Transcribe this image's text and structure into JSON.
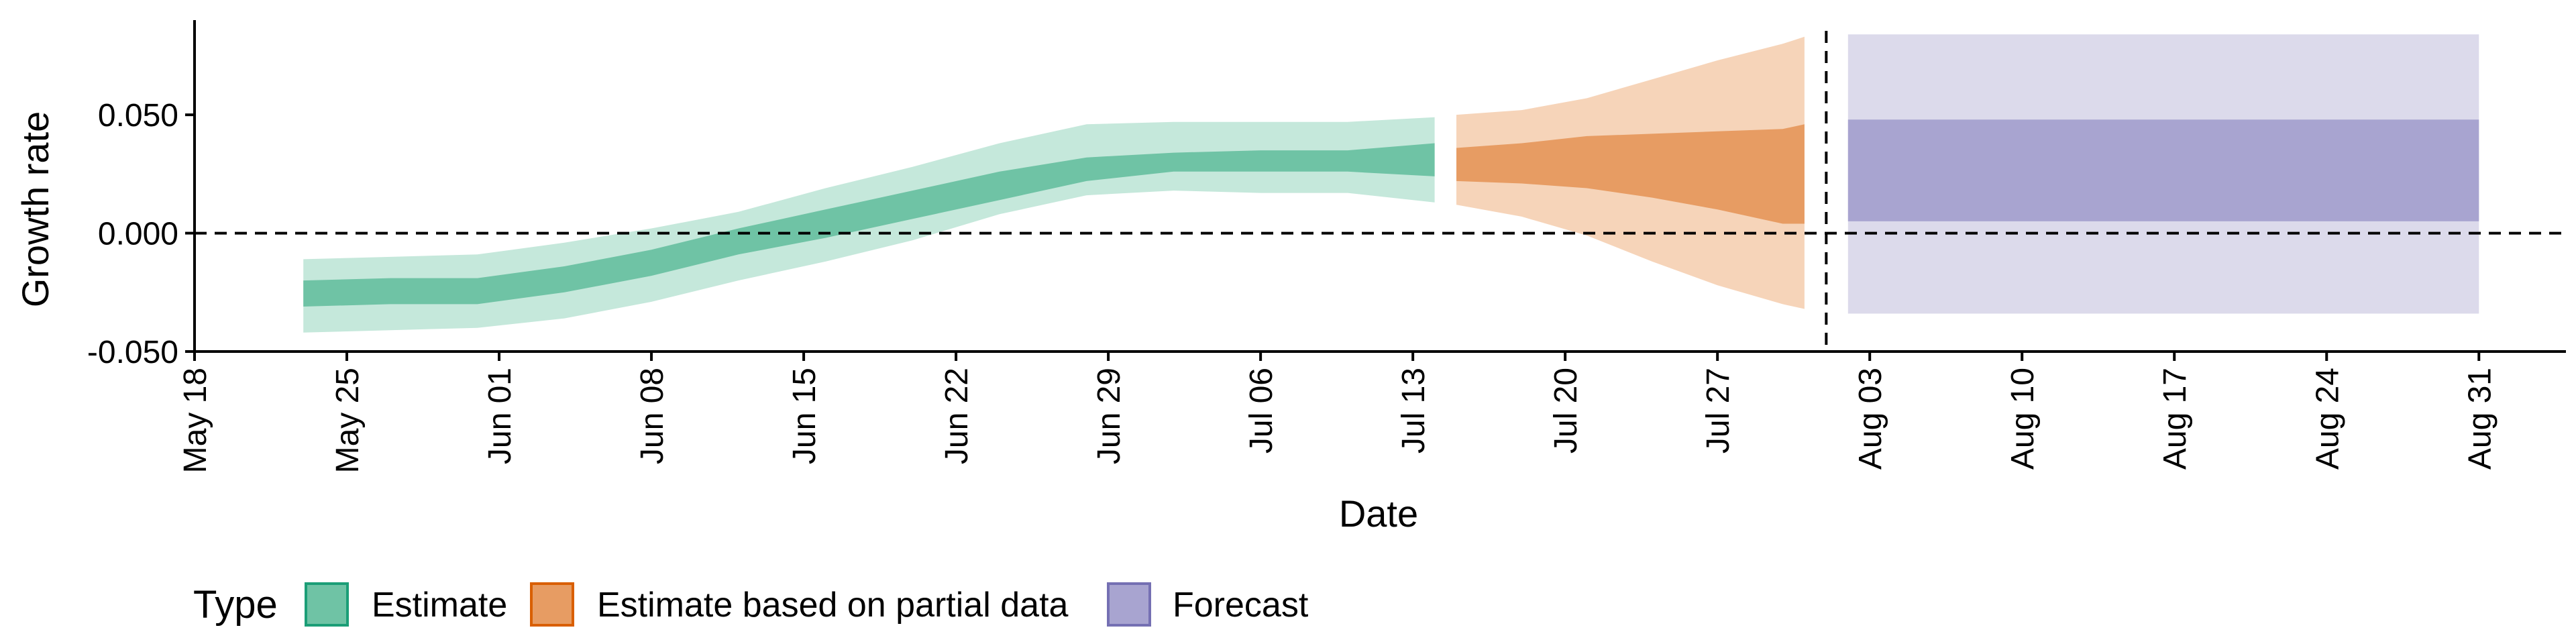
{
  "chart_data": {
    "type": "area",
    "xlabel": "Date",
    "ylabel": "Growth rate",
    "year": 2020,
    "xlim": [
      "2020-05-18",
      "2020-09-04"
    ],
    "ylim": [
      -0.05,
      0.09
    ],
    "x_ticks": [
      "2020-05-18",
      "2020-05-25",
      "2020-06-01",
      "2020-06-08",
      "2020-06-15",
      "2020-06-22",
      "2020-06-29",
      "2020-07-06",
      "2020-07-13",
      "2020-07-20",
      "2020-07-27",
      "2020-08-03",
      "2020-08-10",
      "2020-08-17",
      "2020-08-24",
      "2020-08-31"
    ],
    "x_tick_labels": [
      "May 18",
      "May 25",
      "Jun 01",
      "Jun 08",
      "Jun 15",
      "Jun 22",
      "Jun 29",
      "Jul 06",
      "Jul 13",
      "Jul 20",
      "Jul 27",
      "Aug 03",
      "Aug 10",
      "Aug 17",
      "Aug 24",
      "Aug 31"
    ],
    "y_ticks": [
      -0.05,
      0.0,
      0.05
    ],
    "y_tick_labels": [
      "-0.050",
      "0.000",
      "0.050"
    ],
    "reference_lines": {
      "horizontal_y": 0.0,
      "vertical_x": "2020-08-01"
    },
    "grid": false,
    "legend": {
      "title": "Type",
      "placement": "bottom-left",
      "entries": [
        "Estimate",
        "Estimate based on partial data",
        "Forecast"
      ]
    },
    "colors": {
      "estimate_inner": "#6fc3a5",
      "estimate_outer": "#c5e8db",
      "estimate_border": "#1b9e77",
      "partial_inner": "#e79c63",
      "partial_outer": "#f6d4b9",
      "partial_border": "#d95f02",
      "forecast_inner": "#a8a4d0",
      "forecast_outer": "#dcdaeb",
      "forecast_border": "#7570b3",
      "axis": "#000000"
    },
    "series": [
      {
        "name": "Estimate",
        "x": [
          "2020-05-23",
          "2020-05-27",
          "2020-05-31",
          "2020-06-04",
          "2020-06-08",
          "2020-06-12",
          "2020-06-16",
          "2020-06-20",
          "2020-06-24",
          "2020-06-28",
          "2020-07-02",
          "2020-07-06",
          "2020-07-10",
          "2020-07-14"
        ],
        "inner_lower": [
          -0.031,
          -0.03,
          -0.03,
          -0.025,
          -0.018,
          -0.009,
          -0.002,
          0.006,
          0.014,
          0.022,
          0.026,
          0.026,
          0.026,
          0.024
        ],
        "inner_upper": [
          -0.02,
          -0.019,
          -0.019,
          -0.014,
          -0.007,
          0.002,
          0.01,
          0.018,
          0.026,
          0.032,
          0.034,
          0.035,
          0.035,
          0.038
        ],
        "outer_lower": [
          -0.042,
          -0.041,
          -0.04,
          -0.036,
          -0.029,
          -0.02,
          -0.012,
          -0.003,
          0.008,
          0.016,
          0.018,
          0.017,
          0.017,
          0.013
        ],
        "outer_upper": [
          -0.011,
          -0.01,
          -0.009,
          -0.004,
          0.002,
          0.009,
          0.019,
          0.028,
          0.038,
          0.046,
          0.047,
          0.047,
          0.047,
          0.049
        ]
      },
      {
        "name": "Estimate based on partial data",
        "x": [
          "2020-07-15",
          "2020-07-18",
          "2020-07-21",
          "2020-07-24",
          "2020-07-27",
          "2020-07-30",
          "2020-07-31"
        ],
        "inner_lower": [
          0.022,
          0.021,
          0.019,
          0.015,
          0.01,
          0.004,
          0.004
        ],
        "inner_upper": [
          0.036,
          0.038,
          0.041,
          0.042,
          0.043,
          0.044,
          0.046
        ],
        "outer_lower": [
          0.012,
          0.007,
          -0.001,
          -0.012,
          -0.022,
          -0.03,
          -0.032
        ],
        "outer_upper": [
          0.05,
          0.052,
          0.057,
          0.065,
          0.073,
          0.08,
          0.083
        ]
      },
      {
        "name": "Forecast",
        "x": [
          "2020-08-02",
          "2020-08-31"
        ],
        "inner_lower": [
          0.005,
          0.005
        ],
        "inner_upper": [
          0.048,
          0.048
        ],
        "outer_lower": [
          -0.034,
          -0.034
        ],
        "outer_upper": [
          0.084,
          0.084
        ]
      }
    ]
  }
}
